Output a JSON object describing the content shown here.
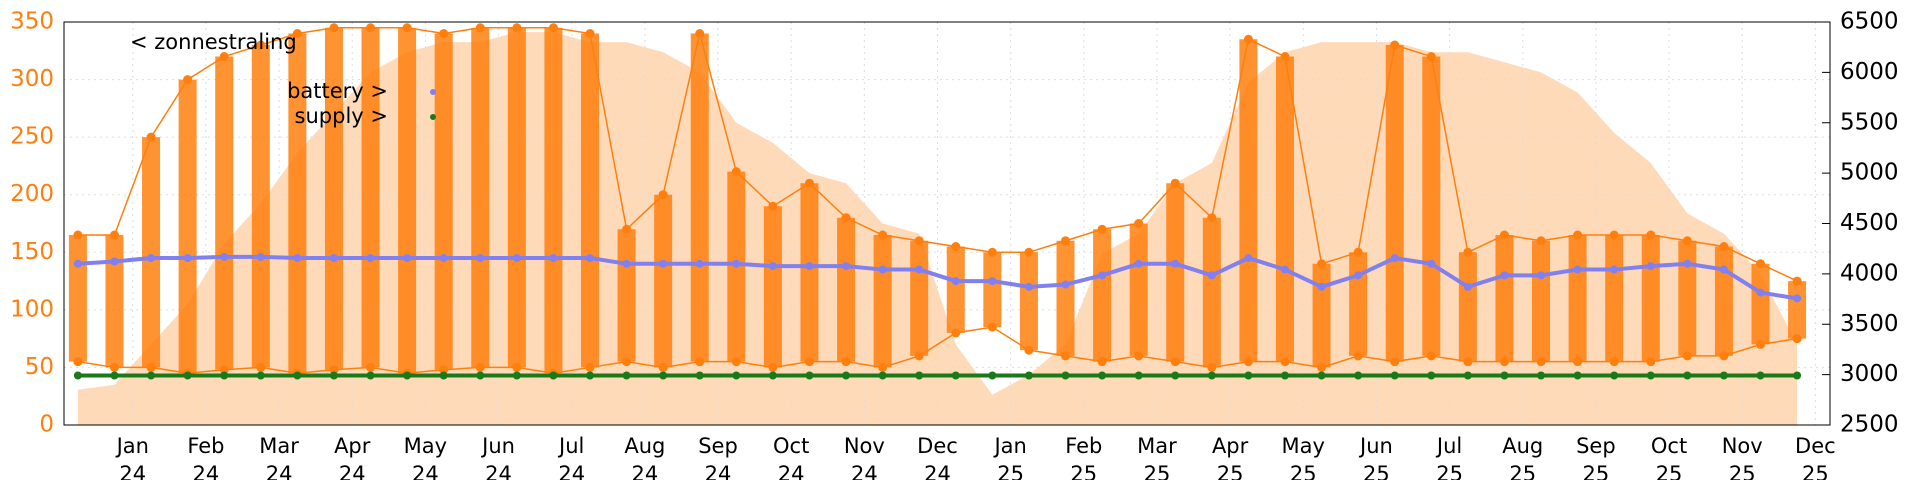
{
  "chart_data": {
    "type": "line",
    "x": [
      -0.75,
      -0.25,
      0.25,
      0.75,
      1.25,
      1.75,
      2.25,
      2.75,
      3.25,
      3.75,
      4.25,
      4.75,
      5.25,
      5.75,
      6.25,
      6.75,
      7.25,
      7.75,
      8.25,
      8.75,
      9.25,
      9.75,
      10.25,
      10.75,
      11.25,
      11.75,
      12.25,
      12.75,
      13.25,
      13.75,
      14.25,
      14.75,
      15.25,
      15.75,
      16.25,
      16.75,
      17.25,
      17.75,
      18.25,
      18.75,
      19.25,
      19.75,
      20.25,
      20.75,
      21.25,
      21.75,
      22.25,
      22.75
    ],
    "xlim": [
      -0.94,
      23.2
    ],
    "xticks": [
      {
        "value": 0,
        "label": "Jan 24"
      },
      {
        "value": 1,
        "label": "Feb 24"
      },
      {
        "value": 2,
        "label": "Mar 24"
      },
      {
        "value": 3,
        "label": "Apr 24"
      },
      {
        "value": 4,
        "label": "May 24"
      },
      {
        "value": 5,
        "label": "Jun 24"
      },
      {
        "value": 6,
        "label": "Jul 24"
      },
      {
        "value": 7,
        "label": "Aug 24"
      },
      {
        "value": 8,
        "label": "Sep 24"
      },
      {
        "value": 9,
        "label": "Oct 24"
      },
      {
        "value": 10,
        "label": "Nov 24"
      },
      {
        "value": 11,
        "label": "Dec 24"
      },
      {
        "value": 12,
        "label": "Jan 25"
      },
      {
        "value": 13,
        "label": "Feb 25"
      },
      {
        "value": 14,
        "label": "Mar 25"
      },
      {
        "value": 15,
        "label": "Apr 25"
      },
      {
        "value": 16,
        "label": "May 25"
      },
      {
        "value": 17,
        "label": "Jun 25"
      },
      {
        "value": 18,
        "label": "Jul 25"
      },
      {
        "value": 19,
        "label": "Aug 25"
      },
      {
        "value": 20,
        "label": "Sep 25"
      },
      {
        "value": 21,
        "label": "Oct 25"
      },
      {
        "value": 22,
        "label": "Nov 25"
      },
      {
        "value": 23,
        "label": "Dec 25"
      }
    ],
    "ylim": [
      0,
      350
    ],
    "yticks": [
      0,
      50,
      100,
      150,
      200,
      250,
      300,
      350
    ],
    "y2lim": [
      2500,
      6500
    ],
    "y2ticks": [
      2500,
      3000,
      3500,
      4000,
      4500,
      5000,
      5500,
      6000,
      6500
    ],
    "grid": true,
    "series": [
      {
        "name": "< zonnestraling",
        "color": "#ffdab9",
        "axis": "y2",
        "values": [
          2850,
          2900,
          3300,
          3700,
          4300,
          4700,
          5200,
          5600,
          6000,
          6200,
          6300,
          6300,
          6400,
          6400,
          6300,
          6300,
          6200,
          6000,
          5500,
          5300,
          5000,
          4900,
          4500,
          4400,
          3300,
          2800,
          3000,
          3300,
          4200,
          4400,
          4900,
          5100,
          5900,
          6200,
          6300,
          6300,
          6300,
          6200,
          6200,
          6100,
          6000,
          5800,
          5400,
          5100,
          4600,
          4400,
          4000,
          3300
        ]
      },
      {
        "color": "#ff7f0e",
        "values": [
          165,
          165,
          250,
          300,
          320,
          330,
          340,
          345,
          345,
          345,
          340,
          345,
          345,
          345,
          340,
          170,
          200,
          340,
          220,
          190,
          210,
          180,
          165,
          160,
          155,
          150,
          150,
          160,
          170,
          175,
          210,
          180,
          335,
          320,
          140,
          150,
          330,
          320,
          150,
          165,
          160,
          165,
          165,
          165,
          160,
          155,
          140,
          125
        ]
      },
      {
        "color": "#ff7f0e",
        "values": [
          55,
          50,
          50,
          45,
          48,
          50,
          45,
          48,
          50,
          45,
          48,
          50,
          50,
          45,
          50,
          55,
          50,
          55,
          55,
          50,
          55,
          55,
          50,
          60,
          80,
          85,
          65,
          60,
          55,
          60,
          55,
          50,
          55,
          55,
          50,
          60,
          55,
          60,
          55,
          55,
          55,
          55,
          55,
          55,
          60,
          60,
          70,
          75
        ]
      },
      {
        "name": "battery >",
        "color": "#8080f0",
        "values": [
          140,
          142,
          145,
          145,
          146,
          146,
          145,
          145,
          145,
          145,
          145,
          145,
          145,
          145,
          145,
          140,
          140,
          140,
          140,
          138,
          138,
          138,
          135,
          135,
          125,
          125,
          120,
          122,
          130,
          140,
          140,
          130,
          145,
          135,
          120,
          130,
          145,
          140,
          120,
          130,
          130,
          135,
          135,
          138,
          140,
          135,
          115,
          110
        ]
      },
      {
        "name": "supply >",
        "color": "#1a7a1a",
        "values": [
          43,
          43,
          43,
          43,
          43,
          43,
          43,
          43,
          43,
          43,
          43,
          43,
          43,
          43,
          43,
          43,
          43,
          43,
          43,
          43,
          43,
          43,
          43,
          43,
          43,
          43,
          43,
          43,
          43,
          43,
          43,
          43,
          43,
          43,
          43,
          43,
          43,
          43,
          43,
          43,
          43,
          43,
          43,
          43,
          43,
          43,
          43,
          43
        ]
      }
    ]
  }
}
